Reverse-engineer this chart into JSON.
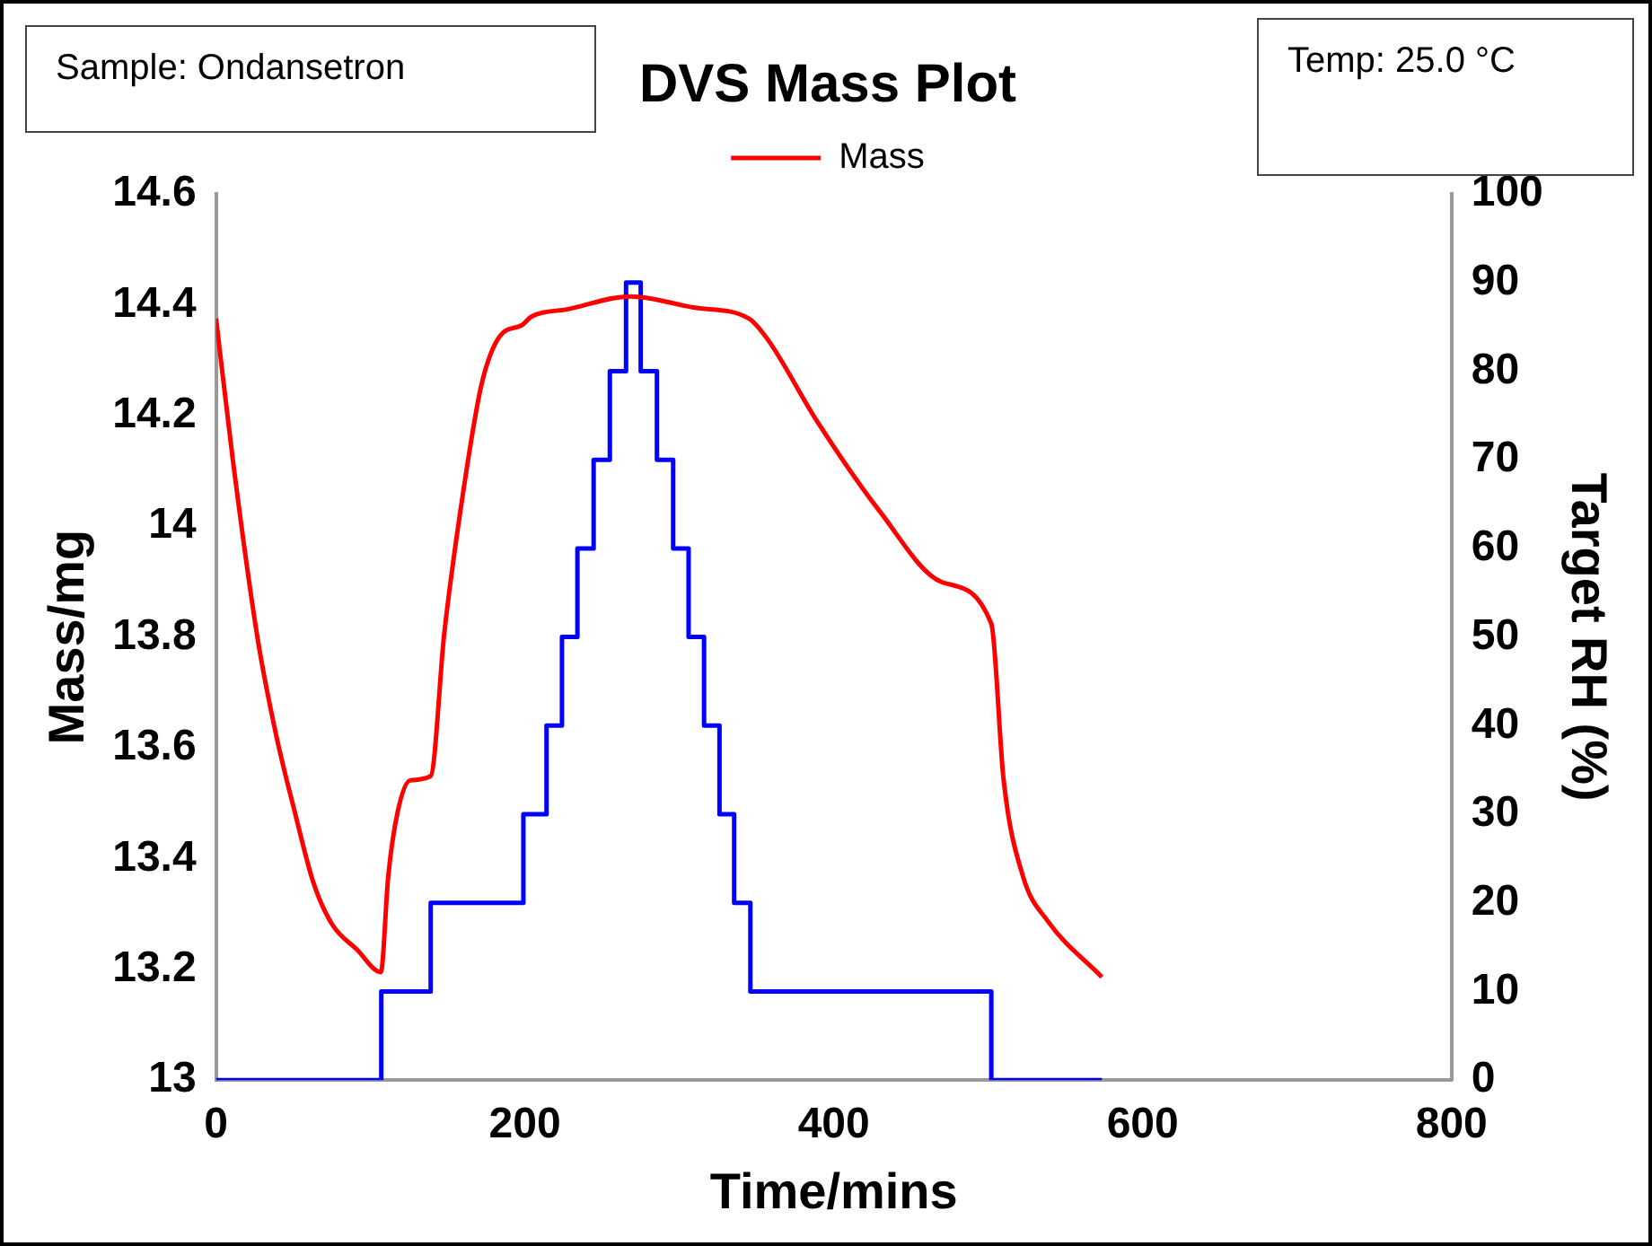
{
  "chart_data": {
    "type": "line",
    "title": "DVS Mass Plot",
    "xlabel": "Time/mins",
    "ylabel": "Mass/mg",
    "y2label": "Target RH (%)",
    "annotations": [
      "Sample: Ondansetron",
      "Temp:  25.0 °C"
    ],
    "legend": "top",
    "xlim": [
      0,
      800
    ],
    "xticks": [
      0,
      200,
      400,
      600,
      800
    ],
    "ylim": [
      13,
      14.6
    ],
    "yticks": [
      13,
      13.2,
      13.4,
      13.6,
      13.8,
      14,
      14.2,
      14.4,
      14.6
    ],
    "y2lim": [
      0,
      100
    ],
    "y2ticks": [
      0,
      10,
      20,
      30,
      40,
      50,
      60,
      70,
      80,
      90,
      100
    ],
    "series": [
      {
        "name": "Mass",
        "color": "#ff0000",
        "x": [
          0,
          10.9,
          27,
          39,
          51,
          63,
          75,
          91.5,
          106.7,
          111.5,
          117.6,
          125.7,
          139,
          147.8,
          160,
          172,
          184,
          198,
          204,
          228,
          268.6,
          309,
          345,
          357,
          389.5,
          430,
          470,
          502,
          510,
          522.5,
          538.6,
          573.6
        ],
        "values": [
          14.375,
          14.119,
          13.796,
          13.622,
          13.484,
          13.357,
          13.282,
          13.235,
          13.195,
          13.368,
          13.484,
          13.541,
          13.549,
          13.807,
          14.061,
          14.257,
          14.344,
          14.363,
          14.378,
          14.392,
          14.415,
          14.395,
          14.375,
          14.338,
          14.188,
          14.026,
          13.899,
          13.824,
          13.541,
          13.368,
          13.287,
          13.186
        ]
      },
      {
        "type": "step",
        "axis": "y2",
        "color": "#0000ff",
        "x": [
          0,
          107,
          139,
          199,
          214,
          224,
          234,
          244.5,
          255,
          265.5,
          275,
          285.5,
          296,
          306,
          316,
          326,
          335.5,
          346,
          502,
          573.6
        ],
        "values": [
          0,
          10,
          20,
          30,
          40,
          50,
          60,
          70,
          80,
          90,
          80,
          70,
          60,
          50,
          40,
          30,
          20,
          10,
          0,
          0
        ]
      }
    ]
  }
}
